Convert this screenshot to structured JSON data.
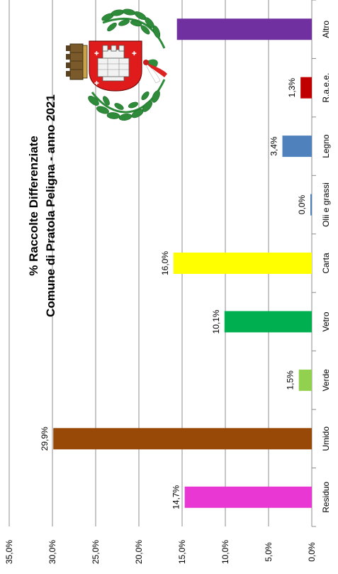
{
  "chart_data": {
    "type": "bar",
    "orientation": "rotated-90-clockwise",
    "title": "% Raccolte Differenziate",
    "subtitle": "Comune di Pratola Peligna - anno 2021",
    "xlabel": "",
    "ylabel": "",
    "categories": [
      "Residuo",
      "Umido",
      "Verde",
      "Vetro",
      "Carta",
      "Olii e grassi",
      "Legno",
      "R.a.e.e.",
      "Altro"
    ],
    "values": [
      14.7,
      29.9,
      1.5,
      10.1,
      16.0,
      0.0,
      3.4,
      1.3,
      15.6
    ],
    "data_labels": [
      "14,7%",
      "29,9%",
      "1,5%",
      "10,1%",
      "16,0%",
      "0,0%",
      "3,4%",
      "1,3%",
      ""
    ],
    "colors": [
      "#e837d2",
      "#984807",
      "#92d050",
      "#00b050",
      "#ffff00",
      "#4f81bd",
      "#4f81bd",
      "#c00000",
      "#7030a0"
    ],
    "ylim": [
      0,
      35
    ],
    "yticks": [
      0,
      5,
      10,
      15,
      20,
      25,
      30,
      35
    ],
    "ytick_labels": [
      "0,0%",
      "5,0%",
      "10,0%",
      "15,0%",
      "20,0%",
      "25,0%",
      "30,0%",
      "35,0%"
    ],
    "grid": true,
    "legend": "none"
  },
  "logo": {
    "name": "pratola-peligna-coat-of-arms"
  }
}
